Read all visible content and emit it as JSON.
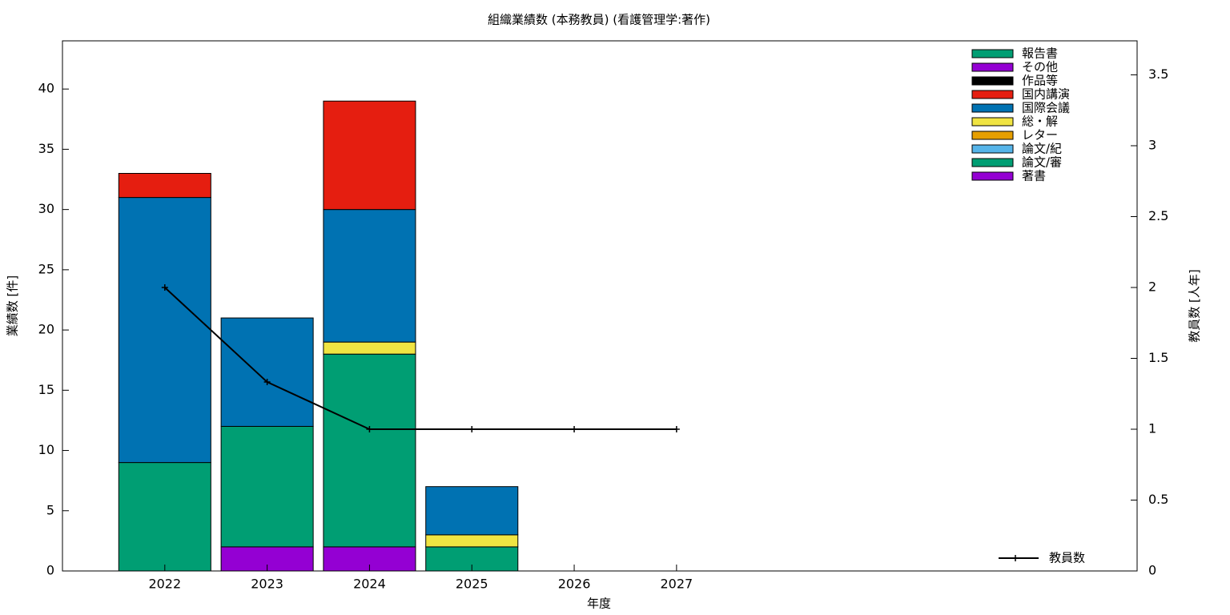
{
  "chart_data": {
    "type": "bar",
    "title": "組織業績数 (本務教員) (看護管理学:著作)",
    "xlabel": "年度",
    "ylabel": "業績数 [件]",
    "y2label": "教員数 [人年]",
    "x": [
      2022,
      2023,
      2024,
      2025,
      2026,
      2027
    ],
    "xlim": [
      2021,
      2031.5
    ],
    "xticks": [
      2022,
      2023,
      2024,
      2025,
      2026,
      2027
    ],
    "ylim": [
      0,
      44
    ],
    "yticks": [
      0,
      5,
      10,
      15,
      20,
      25,
      30,
      35,
      40
    ],
    "y2lim": [
      0,
      3.74
    ],
    "y2ticks": [
      0,
      0.5,
      1,
      1.5,
      2,
      2.5,
      3,
      3.5
    ],
    "series": [
      {
        "name": "報告書",
        "color": "#009e73",
        "values": [
          0,
          0,
          0,
          0,
          0,
          0
        ]
      },
      {
        "name": "その他",
        "color": "#9400d3",
        "values": [
          0,
          0,
          0,
          0,
          0,
          0
        ]
      },
      {
        "name": "作品等",
        "color": "#000000",
        "values": [
          0,
          0,
          0,
          0,
          0,
          0
        ]
      },
      {
        "name": "国内講演",
        "color": "#e51e10",
        "values": [
          2,
          0,
          9,
          0,
          0,
          0
        ]
      },
      {
        "name": "国際会議",
        "color": "#0072b2",
        "values": [
          22,
          9,
          11,
          4,
          0,
          0
        ]
      },
      {
        "name": "総・解",
        "color": "#f0e442",
        "values": [
          0,
          0,
          1,
          1,
          0,
          0
        ]
      },
      {
        "name": "レター",
        "color": "#e69f00",
        "values": [
          0,
          0,
          0,
          0,
          0,
          0
        ]
      },
      {
        "name": "論文/紀",
        "color": "#56b4e9",
        "values": [
          0,
          0,
          0,
          0,
          0,
          0
        ]
      },
      {
        "name": "論文/審",
        "color": "#009e73",
        "values": [
          9,
          10,
          16,
          2,
          0,
          0
        ]
      },
      {
        "name": "著書",
        "color": "#9400d3",
        "values": [
          0,
          2,
          2,
          0,
          0,
          0
        ]
      },
      {
        "name": "教員数",
        "color": "#000000",
        "type": "line",
        "axis": "y2",
        "values": [
          2,
          1.333,
          1,
          1,
          1,
          1
        ]
      }
    ]
  }
}
